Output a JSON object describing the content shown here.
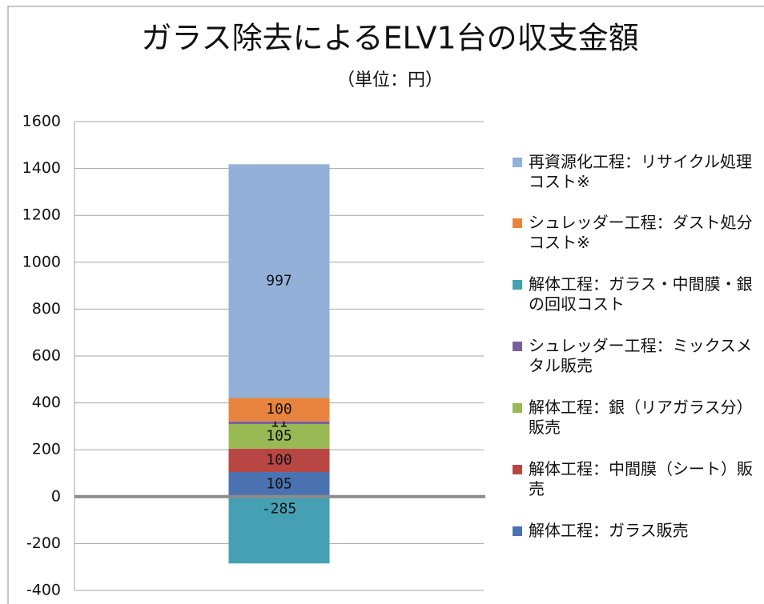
{
  "chart_data": {
    "type": "bar",
    "stacked": true,
    "title": "ガラス除去によるELV1台の収支金額",
    "subtitle": "（単位：円）",
    "categories": [
      null
    ],
    "series": [
      {
        "name": "解体工程：ガラス販売",
        "color": "#4a72b0",
        "values": [
          105
        ]
      },
      {
        "name": "解体工程：中間膜（シート）販売",
        "color": "#b84743",
        "values": [
          100
        ]
      },
      {
        "name": "解体工程：銀（リアガラス分）販売",
        "color": "#98b954",
        "values": [
          105
        ]
      },
      {
        "name": "シュレッダー工程：ミックスメタル販売",
        "color": "#7a5e9c",
        "values": [
          11
        ]
      },
      {
        "name": "解体工程：ガラス・中間膜・銀の回収コスト",
        "color": "#45a0b4",
        "values": [
          -285
        ]
      },
      {
        "name": "シュレッダー工程：ダスト処分コスト※",
        "color": "#e8843d",
        "values": [
          100
        ]
      },
      {
        "name": "再資源化工程：リサイクル処理コスト※",
        "color": "#93b1d8",
        "values": [
          997
        ]
      }
    ],
    "ylim": [
      -400,
      1600
    ],
    "yticks": [
      -400,
      -200,
      0,
      200,
      400,
      600,
      800,
      1000,
      1200,
      1400,
      1600
    ],
    "grid": true,
    "legend": "right"
  }
}
